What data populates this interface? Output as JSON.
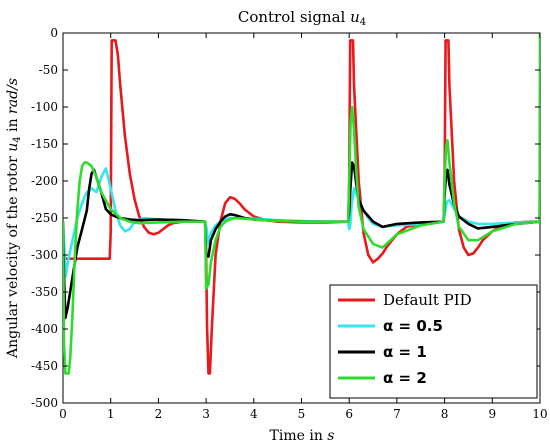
{
  "chart_data": {
    "type": "line",
    "title": "Control signal u4",
    "xlabel": "Time in s",
    "ylabel": "Angular velocity of the rotor u4 in rad/s",
    "xlim": [
      0,
      10
    ],
    "ylim": [
      -500,
      0
    ],
    "xticks": [
      0,
      1,
      2,
      3,
      4,
      5,
      6,
      7,
      8,
      9,
      10
    ],
    "yticks": [
      0,
      -50,
      -100,
      -150,
      -200,
      -250,
      -300,
      -350,
      -400,
      -450,
      -500
    ],
    "grid": false,
    "legend_position": "bottom-right",
    "series": [
      {
        "name": "Default PID",
        "color": "#e8191c",
        "x": [
          0,
          0.02,
          0.05,
          0.5,
          0.98,
          1.0,
          1.02,
          1.05,
          1.1,
          1.15,
          1.2,
          1.3,
          1.4,
          1.5,
          1.6,
          1.7,
          1.8,
          1.9,
          2.0,
          2.1,
          2.2,
          2.3,
          2.5,
          2.8,
          2.98,
          3.0,
          3.02,
          3.05,
          3.08,
          3.12,
          3.2,
          3.3,
          3.4,
          3.5,
          3.6,
          3.7,
          3.8,
          4.0,
          4.2,
          4.5,
          5.0,
          5.5,
          5.98,
          6.0,
          6.02,
          6.08,
          6.1,
          6.2,
          6.3,
          6.4,
          6.5,
          6.6,
          6.7,
          6.8,
          7.0,
          7.2,
          7.5,
          7.8,
          7.98,
          8.0,
          8.02,
          8.08,
          8.1,
          8.2,
          8.3,
          8.4,
          8.5,
          8.6,
          8.7,
          8.8,
          9.0,
          9.2,
          9.5,
          9.8,
          9.99,
          10.0
        ],
        "y": [
          -255,
          -300,
          -305,
          -305,
          -305,
          -270,
          -10,
          -10,
          -10,
          -30,
          -70,
          -140,
          -190,
          -225,
          -248,
          -262,
          -270,
          -272,
          -270,
          -265,
          -260,
          -257,
          -255,
          -255,
          -255,
          -300,
          -400,
          -460,
          -460,
          -400,
          -300,
          -255,
          -230,
          -222,
          -224,
          -230,
          -238,
          -248,
          -252,
          -255,
          -256,
          -256,
          -255,
          -200,
          -10,
          -10,
          -70,
          -200,
          -270,
          -300,
          -310,
          -305,
          -298,
          -288,
          -272,
          -262,
          -258,
          -256,
          -255,
          -200,
          -10,
          -10,
          -70,
          -200,
          -265,
          -290,
          -300,
          -298,
          -290,
          -280,
          -268,
          -260,
          -256,
          -255,
          -255,
          -255
        ]
      },
      {
        "name": "α = 0.5",
        "color": "#33e6f2",
        "x": [
          0,
          0.02,
          0.05,
          0.1,
          0.2,
          0.3,
          0.4,
          0.5,
          0.6,
          0.7,
          0.8,
          0.9,
          1.0,
          1.1,
          1.2,
          1.3,
          1.4,
          1.5,
          1.7,
          2.0,
          2.5,
          2.98,
          3.0,
          3.05,
          3.1,
          3.2,
          3.3,
          3.4,
          3.5,
          3.7,
          4.0,
          4.5,
          5.0,
          5.5,
          5.98,
          6.0,
          6.02,
          6.05,
          6.1,
          6.2,
          6.3,
          6.4,
          6.5,
          6.7,
          7.0,
          7.5,
          7.98,
          8.0,
          8.05,
          8.1,
          8.2,
          8.3,
          8.5,
          8.7,
          9.0,
          9.5,
          10.0
        ],
        "y": [
          -255,
          -280,
          -330,
          -310,
          -280,
          -250,
          -230,
          -215,
          -210,
          -215,
          -195,
          -183,
          -210,
          -240,
          -260,
          -268,
          -265,
          -255,
          -250,
          -252,
          -253,
          -255,
          -260,
          -285,
          -270,
          -260,
          -255,
          -252,
          -250,
          -250,
          -251,
          -253,
          -254,
          -255,
          -255,
          -265,
          -260,
          -232,
          -210,
          -225,
          -240,
          -250,
          -258,
          -262,
          -260,
          -258,
          -255,
          -245,
          -228,
          -226,
          -238,
          -248,
          -255,
          -258,
          -258,
          -256,
          -255
        ]
      },
      {
        "name": "α = 1",
        "color": "#000000",
        "x": [
          0,
          0.02,
          0.05,
          0.1,
          0.2,
          0.3,
          0.4,
          0.5,
          0.55,
          0.6,
          0.65,
          0.7,
          0.8,
          0.9,
          1.0,
          1.1,
          1.2,
          1.4,
          1.6,
          2.0,
          2.5,
          2.98,
          3.0,
          3.05,
          3.1,
          3.2,
          3.3,
          3.4,
          3.5,
          3.6,
          3.8,
          4.0,
          4.5,
          5.0,
          5.5,
          5.98,
          6.0,
          6.03,
          6.06,
          6.1,
          6.15,
          6.2,
          6.3,
          6.5,
          6.7,
          7.0,
          7.5,
          7.98,
          8.0,
          8.03,
          8.06,
          8.1,
          8.2,
          8.3,
          8.5,
          8.7,
          9.0,
          9.5,
          10.0
        ],
        "y": [
          -255,
          -330,
          -385,
          -370,
          -330,
          -290,
          -265,
          -240,
          -210,
          -190,
          -185,
          -195,
          -215,
          -238,
          -245,
          -248,
          -250,
          -252,
          -253,
          -252,
          -253,
          -255,
          -300,
          -302,
          -280,
          -265,
          -255,
          -248,
          -245,
          -246,
          -250,
          -252,
          -254,
          -255,
          -255,
          -255,
          -240,
          -205,
          -175,
          -180,
          -205,
          -225,
          -240,
          -255,
          -262,
          -258,
          -256,
          -255,
          -220,
          -190,
          -185,
          -205,
          -232,
          -248,
          -258,
          -264,
          -262,
          -258,
          -255
        ]
      },
      {
        "name": "α = 2",
        "color": "#2edb2e",
        "x": [
          0,
          0.02,
          0.05,
          0.12,
          0.15,
          0.2,
          0.25,
          0.3,
          0.35,
          0.4,
          0.45,
          0.5,
          0.6,
          0.7,
          0.8,
          1.0,
          1.2,
          1.4,
          1.6,
          2.0,
          2.5,
          2.98,
          3.0,
          3.05,
          3.1,
          3.2,
          3.3,
          3.4,
          3.5,
          3.6,
          3.8,
          4.0,
          4.5,
          5.0,
          5.5,
          5.98,
          6.0,
          6.03,
          6.06,
          6.1,
          6.15,
          6.2,
          6.3,
          6.5,
          6.7,
          7.0,
          7.5,
          7.98,
          8.0,
          8.03,
          8.06,
          8.1,
          8.2,
          8.3,
          8.5,
          8.7,
          9.0,
          9.5,
          9.99,
          10.0
        ],
        "y": [
          -255,
          -420,
          -460,
          -460,
          -440,
          -380,
          -300,
          -240,
          -200,
          -180,
          -175,
          -175,
          -180,
          -195,
          -215,
          -238,
          -250,
          -255,
          -257,
          -256,
          -255,
          -255,
          -345,
          -340,
          -310,
          -280,
          -262,
          -255,
          -252,
          -250,
          -251,
          -252,
          -254,
          -255,
          -255,
          -255,
          -200,
          -120,
          -100,
          -130,
          -190,
          -235,
          -265,
          -285,
          -290,
          -272,
          -260,
          -255,
          -200,
          -155,
          -145,
          -175,
          -230,
          -262,
          -280,
          -280,
          -268,
          -258,
          -255,
          0
        ]
      }
    ]
  }
}
